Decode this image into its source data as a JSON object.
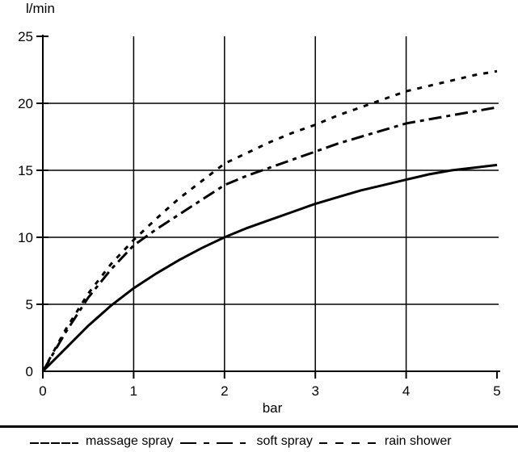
{
  "chart_data": {
    "type": "line",
    "title": "",
    "ylabel": "l/min",
    "xlabel": "bar",
    "xlim": [
      0,
      5
    ],
    "ylim": [
      0,
      25
    ],
    "xticks": [
      0,
      1,
      2,
      3,
      4,
      5
    ],
    "yticks": [
      0,
      5,
      10,
      15,
      20,
      25
    ],
    "grid": true,
    "legend_position": "bottom",
    "line_color": "#000000",
    "x": [
      0,
      0.25,
      0.5,
      0.75,
      1,
      1.25,
      1.5,
      1.75,
      2,
      2.25,
      2.5,
      2.75,
      3,
      3.25,
      3.5,
      3.75,
      4,
      4.25,
      4.5,
      4.75,
      5
    ],
    "series": [
      {
        "name": "massage spray",
        "style": "solid",
        "values": [
          0,
          1.7,
          3.4,
          4.9,
          6.2,
          7.3,
          8.3,
          9.2,
          10.0,
          10.7,
          11.3,
          11.9,
          12.5,
          13.0,
          13.5,
          13.9,
          14.3,
          14.7,
          15.0,
          15.2,
          15.4
        ]
      },
      {
        "name": "soft spray",
        "style": "dash-dot",
        "values": [
          0,
          2.9,
          5.5,
          7.6,
          9.4,
          10.6,
          11.7,
          12.8,
          13.9,
          14.6,
          15.2,
          15.8,
          16.4,
          17.0,
          17.5,
          18.0,
          18.5,
          18.8,
          19.1,
          19.4,
          19.7
        ]
      },
      {
        "name": "rain shower",
        "style": "dashed",
        "values": [
          0,
          3.1,
          5.8,
          8.0,
          9.8,
          11.4,
          12.9,
          14.2,
          15.5,
          16.3,
          17.1,
          17.8,
          18.4,
          19.1,
          19.7,
          20.3,
          20.9,
          21.3,
          21.7,
          22.1,
          22.4
        ]
      }
    ]
  }
}
